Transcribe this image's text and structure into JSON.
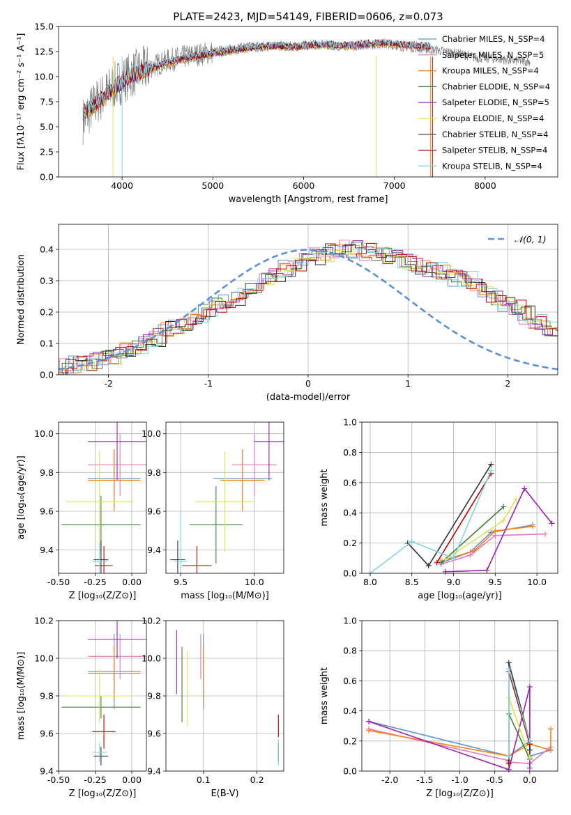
{
  "palette": {
    "Chabrier MILES": "#5b8fd6",
    "Salpeter MILES": "#e377c2",
    "Kroupa MILES": "#ff7f0e",
    "Chabrier ELODIE": "#3d7d3d",
    "Salpeter ELODIE": "#9b1fb0",
    "Kroupa ELODIE": "#d4e84a",
    "Chabrier STELIB": "#333333",
    "Salpeter STELIB": "#c00000",
    "Kroupa STELIB": "#7fd6e0",
    "normal": "#5b8fd6",
    "spectrum": "#808080"
  },
  "chart_data": [
    {
      "type": "line",
      "title": "PLATE=2423, MJD=54149, FIBERID=0606, z=0.073",
      "xlabel": "wavelength [Angstrom, rest frame]",
      "ylabel": "Flux [fλ10⁻¹⁷ erg cm⁻² s⁻¹ A⁻¹]",
      "xlim": [
        3300,
        8800
      ],
      "ylim": [
        0,
        15
      ],
      "xticks": [
        4000,
        5000,
        6000,
        7000,
        8000
      ],
      "yticks": [
        0.0,
        2.5,
        5.0,
        7.5,
        10.0,
        12.5,
        15.0
      ],
      "legend_position": "right",
      "legend": [
        "Chabrier MILES, N_SSP=4",
        "Salpeter MILES, N_SSP=5",
        "Kroupa MILES, N_SSP=4",
        "Chabrier ELODIE, N_SSP=4",
        "Salpeter ELODIE, N_SSP=5",
        "Kroupa ELODIE, N_SSP=4",
        "Chabrier STELIB, N_SSP=4",
        "Salpeter STELIB, N_SSP=4",
        "Kroupa STELIB, N_SSP=4"
      ],
      "series": [
        {
          "name": "data",
          "x": [
            3570,
            3700,
            3900,
            4100,
            4300,
            4500,
            4700,
            4900,
            5100,
            5300,
            5500,
            5700,
            5900,
            6100,
            6300,
            6500,
            6700,
            6900,
            7100,
            7300,
            7500,
            7700,
            7900,
            8100,
            8300,
            8500
          ],
          "y": [
            5.6,
            7.3,
            9.0,
            10.2,
            10.9,
            11.6,
            12.0,
            12.3,
            12.6,
            12.9,
            13.1,
            13.1,
            13.0,
            13.2,
            13.1,
            13.0,
            13.2,
            13.3,
            13.0,
            12.8,
            12.6,
            12.3,
            11.9,
            11.8,
            11.6,
            11.5
          ]
        },
        {
          "name": "model",
          "x": [
            3570,
            3700,
            3900,
            4100,
            4300,
            4500,
            4700,
            4900,
            5100,
            5300,
            5500,
            5700,
            5900,
            6100,
            6300,
            6500,
            6700,
            6900,
            7100,
            7300,
            7400
          ],
          "y": [
            6.2,
            7.0,
            8.6,
            10.0,
            10.6,
            11.2,
            11.7,
            12.0,
            12.3,
            12.6,
            12.8,
            12.9,
            12.8,
            13.0,
            13.0,
            12.9,
            13.1,
            13.2,
            13.0,
            12.9,
            12.8
          ]
        }
      ]
    },
    {
      "type": "bar",
      "xlabel": "(data-model)/error",
      "ylabel": "Normed distribution",
      "xlim": [
        -2.5,
        2.5
      ],
      "ylim": [
        0,
        0.48
      ],
      "xticks": [
        -2,
        -1,
        0,
        1,
        2
      ],
      "yticks": [
        0.0,
        0.1,
        0.2,
        0.3,
        0.4
      ],
      "legend": [
        "𝒩(0, 1)"
      ],
      "legend_position": "upper right",
      "bin_width": 0.1,
      "bin_start": -2.5,
      "histogram_values": [
        0.03,
        0.03,
        0.04,
        0.05,
        0.06,
        0.06,
        0.08,
        0.09,
        0.1,
        0.12,
        0.14,
        0.15,
        0.17,
        0.18,
        0.2,
        0.22,
        0.23,
        0.25,
        0.27,
        0.28,
        0.3,
        0.32,
        0.34,
        0.36,
        0.37,
        0.38,
        0.39,
        0.4,
        0.4,
        0.4,
        0.39,
        0.39,
        0.38,
        0.37,
        0.36,
        0.35,
        0.34,
        0.33,
        0.32,
        0.31,
        0.3,
        0.28,
        0.26,
        0.24,
        0.23,
        0.21,
        0.19,
        0.17,
        0.15,
        0.14
      ],
      "curve": "normal pdf, mean 0, sigma 1"
    },
    {
      "type": "scatter",
      "xlabel": "Z [log₁₀(Z/Z⊙)]",
      "ylabel": "age  [log₁₀(age/yr)]",
      "xlim": [
        -0.5,
        0.1
      ],
      "ylim": [
        9.28,
        10.06
      ],
      "xticks": [
        -0.5,
        -0.25,
        0.0
      ],
      "yticks": [
        9.4,
        9.6,
        9.8,
        10.0
      ],
      "points": [
        {
          "series": "Chabrier MILES",
          "x": -0.12,
          "y": 9.77,
          "xerr": 0.18,
          "yerr": 0.15
        },
        {
          "series": "Salpeter MILES",
          "x": -0.08,
          "y": 9.84,
          "xerr": 0.22,
          "yerr": 0.16
        },
        {
          "series": "Kroupa MILES",
          "x": -0.12,
          "y": 9.76,
          "xerr": 0.18,
          "yerr": 0.16
        },
        {
          "series": "Chabrier ELODIE",
          "x": -0.21,
          "y": 9.53,
          "xerr": 0.27,
          "yerr": 0.15
        },
        {
          "series": "Salpeter ELODIE",
          "x": -0.1,
          "y": 9.96,
          "xerr": 0.2,
          "yerr": 0.2
        },
        {
          "series": "Kroupa ELODIE",
          "x": -0.22,
          "y": 9.65,
          "xerr": 0.23,
          "yerr": 0.26
        },
        {
          "series": "Chabrier STELIB",
          "x": -0.21,
          "y": 9.35,
          "xerr": 0.05,
          "yerr": 0.1
        },
        {
          "series": "Salpeter STELIB",
          "x": -0.19,
          "y": 9.32,
          "xerr": 0.06,
          "yerr": 0.1
        },
        {
          "series": "Kroupa STELIB",
          "x": -0.22,
          "y": 9.34,
          "xerr": 0.05,
          "yerr": 0.1
        }
      ]
    },
    {
      "type": "scatter",
      "xlabel": "mass [log₁₀(M/M⊙)]",
      "ylabel": "",
      "xlim": [
        9.4,
        10.2
      ],
      "ylim": [
        9.28,
        10.06
      ],
      "xticks": [
        9.5,
        10.0
      ],
      "yticks": [
        9.4,
        9.6,
        9.8,
        10.0
      ],
      "points": [
        {
          "series": "Chabrier MILES",
          "x": 9.92,
          "y": 9.77,
          "xerr": 0.2,
          "yerr": 0.15
        },
        {
          "series": "Salpeter MILES",
          "x": 10.0,
          "y": 9.84,
          "xerr": 0.15,
          "yerr": 0.16
        },
        {
          "series": "Kroupa MILES",
          "x": 9.92,
          "y": 9.76,
          "xerr": 0.15,
          "yerr": 0.16
        },
        {
          "series": "Chabrier ELODIE",
          "x": 9.74,
          "y": 9.53,
          "xerr": 0.18,
          "yerr": 0.2
        },
        {
          "series": "Salpeter ELODIE",
          "x": 10.1,
          "y": 9.96,
          "xerr": 0.1,
          "yerr": 0.2
        },
        {
          "series": "Kroupa ELODIE",
          "x": 9.8,
          "y": 9.65,
          "xerr": 0.2,
          "yerr": 0.26
        },
        {
          "series": "Chabrier STELIB",
          "x": 9.48,
          "y": 9.35,
          "xerr": 0.05,
          "yerr": 0.1
        },
        {
          "series": "Salpeter STELIB",
          "x": 9.61,
          "y": 9.32,
          "xerr": 0.1,
          "yerr": 0.1
        },
        {
          "series": "Kroupa STELIB",
          "x": 9.5,
          "y": 9.34,
          "xerr": 0.04,
          "yerr": 0.26
        }
      ]
    },
    {
      "type": "line",
      "xlabel": "age  [log₁₀(age/yr)]",
      "ylabel": "mass weight",
      "xlim": [
        7.9,
        10.25
      ],
      "ylim": [
        0,
        1
      ],
      "xticks": [
        8.0,
        8.5,
        9.0,
        9.5,
        10.0
      ],
      "yticks": [
        0.0,
        0.2,
        0.4,
        0.6,
        0.8,
        1.0
      ],
      "series": [
        {
          "name": "Chabrier MILES",
          "x": [
            8.85,
            9.2,
            9.45,
            9.95
          ],
          "y": [
            0.07,
            0.14,
            0.27,
            0.32
          ]
        },
        {
          "name": "Salpeter MILES",
          "x": [
            8.85,
            9.2,
            9.5,
            10.1
          ],
          "y": [
            0.06,
            0.12,
            0.25,
            0.26
          ]
        },
        {
          "name": "Kroupa MILES",
          "x": [
            8.85,
            9.25,
            9.5,
            9.95
          ],
          "y": [
            0.08,
            0.15,
            0.28,
            0.31
          ]
        },
        {
          "name": "Chabrier ELODIE",
          "x": [
            8.85,
            9.6
          ],
          "y": [
            0.07,
            0.44
          ]
        },
        {
          "name": "Salpeter ELODIE",
          "x": [
            8.9,
            9.4,
            9.85,
            10.18
          ],
          "y": [
            0.01,
            0.02,
            0.56,
            0.33
          ]
        },
        {
          "name": "Kroupa ELODIE",
          "x": [
            8.9,
            9.6,
            9.75
          ],
          "y": [
            0.09,
            0.35,
            0.49
          ]
        },
        {
          "name": "Chabrier STELIB",
          "x": [
            8.45,
            8.7,
            9.45
          ],
          "y": [
            0.2,
            0.05,
            0.72
          ]
        },
        {
          "name": "Salpeter STELIB",
          "x": [
            8.8,
            9.45
          ],
          "y": [
            0.07,
            0.66
          ]
        },
        {
          "name": "Kroupa STELIB",
          "x": [
            8.0,
            8.5,
            9.0,
            9.45
          ],
          "y": [
            0.0,
            0.21,
            0.1,
            0.68
          ]
        }
      ]
    },
    {
      "type": "scatter",
      "xlabel": "Z [log₁₀(Z/Z⊙)]",
      "ylabel": "mass [log₁₀(M/M⊙)]",
      "xlim": [
        -0.5,
        0.1
      ],
      "ylim": [
        9.4,
        10.2
      ],
      "xticks": [
        -0.5,
        -0.25,
        0.0
      ],
      "yticks": [
        9.4,
        9.6,
        9.8,
        10.0,
        10.2
      ],
      "points": [
        {
          "series": "Chabrier MILES",
          "x": -0.12,
          "y": 9.93,
          "xerr": 0.18,
          "yerr": 0.2
        },
        {
          "series": "Salpeter MILES",
          "x": -0.08,
          "y": 10.01,
          "xerr": 0.22,
          "yerr": 0.12
        },
        {
          "series": "Kroupa MILES",
          "x": -0.12,
          "y": 9.92,
          "xerr": 0.18,
          "yerr": 0.15
        },
        {
          "series": "Chabrier ELODIE",
          "x": -0.21,
          "y": 9.74,
          "xerr": 0.27,
          "yerr": 0.06
        },
        {
          "series": "Salpeter ELODIE",
          "x": -0.1,
          "y": 10.1,
          "xerr": 0.2,
          "yerr": 0.1
        },
        {
          "series": "Kroupa ELODIE",
          "x": -0.22,
          "y": 9.8,
          "xerr": 0.23,
          "yerr": 0.14
        },
        {
          "series": "Chabrier STELIB",
          "x": -0.21,
          "y": 9.48,
          "xerr": 0.05,
          "yerr": 0.05
        },
        {
          "series": "Salpeter STELIB",
          "x": -0.19,
          "y": 9.61,
          "xerr": 0.08,
          "yerr": 0.09
        },
        {
          "series": "Kroupa STELIB",
          "x": -0.22,
          "y": 9.5,
          "xerr": 0.05,
          "yerr": 0.05
        }
      ]
    },
    {
      "type": "scatter",
      "xlabel": "E(B-V)",
      "ylabel": "",
      "xlim": [
        0.03,
        0.25
      ],
      "ylim": [
        9.4,
        10.2
      ],
      "xticks": [
        0.1,
        0.2
      ],
      "yticks": [
        9.4,
        9.6,
        9.8,
        10.0,
        10.2
      ],
      "points": [
        {
          "series": "Chabrier MILES",
          "x": 0.1,
          "y": 9.93,
          "yerr": 0.2
        },
        {
          "series": "Salpeter MILES",
          "x": 0.095,
          "y": 10.01,
          "yerr": 0.12
        },
        {
          "series": "Kroupa MILES",
          "x": 0.1,
          "y": 9.92,
          "yerr": 0.15
        },
        {
          "series": "Chabrier ELODIE",
          "x": 0.06,
          "y": 9.86,
          "yerr": 0.2
        },
        {
          "series": "Salpeter ELODIE",
          "x": 0.05,
          "y": 9.98,
          "yerr": 0.17
        },
        {
          "series": "Kroupa ELODIE",
          "x": 0.07,
          "y": 9.84,
          "yerr": 0.2
        },
        {
          "series": "Chabrier STELIB",
          "x": 0.24,
          "y": 9.5,
          "yerr": 0.05
        },
        {
          "series": "Salpeter STELIB",
          "x": 0.24,
          "y": 9.64,
          "yerr": 0.06
        },
        {
          "series": "Kroupa STELIB",
          "x": 0.24,
          "y": 9.5,
          "yerr": 0.07
        }
      ]
    },
    {
      "type": "line",
      "xlabel": "Z [log₁₀(Z/Z⊙)]",
      "ylabel": "mass weight",
      "xlim": [
        -2.4,
        0.4
      ],
      "ylim": [
        0,
        1
      ],
      "xticks": [
        -2.0,
        -1.5,
        -1.0,
        -0.5,
        0.0
      ],
      "yticks": [
        0.0,
        0.2,
        0.4,
        0.6,
        0.8,
        1.0
      ],
      "series": [
        {
          "name": "Chabrier MILES",
          "x": [
            -2.3,
            -0.3,
            0.0,
            0.0,
            0.3
          ],
          "y": [
            0.33,
            0.1,
            0.2,
            0.1,
            0.14
          ]
        },
        {
          "name": "Salpeter MILES",
          "x": [
            -2.3,
            -0.3,
            -0.3,
            0.0,
            0.3
          ],
          "y": [
            0.28,
            0.07,
            0.06,
            0.05,
            0.16
          ]
        },
        {
          "name": "Kroupa MILES",
          "x": [
            -2.3,
            -0.3,
            0.0,
            0.3,
            0.3
          ],
          "y": [
            0.27,
            0.1,
            0.18,
            0.14,
            0.28
          ]
        },
        {
          "name": "Chabrier ELODIE",
          "x": [
            -0.3,
            -0.3,
            0.0
          ],
          "y": [
            0.07,
            0.38,
            0.08
          ]
        },
        {
          "name": "Salpeter ELODIE",
          "x": [
            -2.3,
            -0.3,
            0.0,
            0.0
          ],
          "y": [
            0.33,
            0.01,
            0.56,
            0.02
          ]
        },
        {
          "name": "Kroupa ELODIE",
          "x": [
            -0.3,
            -0.3,
            0.0
          ],
          "y": [
            0.1,
            0.49,
            0.09
          ]
        },
        {
          "name": "Chabrier STELIB",
          "x": [
            -0.3,
            -0.3,
            0.0,
            0.0
          ],
          "y": [
            0.05,
            0.72,
            0.2,
            0.14
          ]
        },
        {
          "name": "Salpeter STELIB",
          "x": [
            -0.3,
            -0.3,
            0.0
          ],
          "y": [
            0.05,
            0.66,
            0.18
          ]
        },
        {
          "name": "Kroupa STELIB",
          "x": [
            -0.3,
            -0.3,
            0.0
          ],
          "y": [
            0.1,
            0.68,
            0.2
          ]
        }
      ]
    }
  ]
}
